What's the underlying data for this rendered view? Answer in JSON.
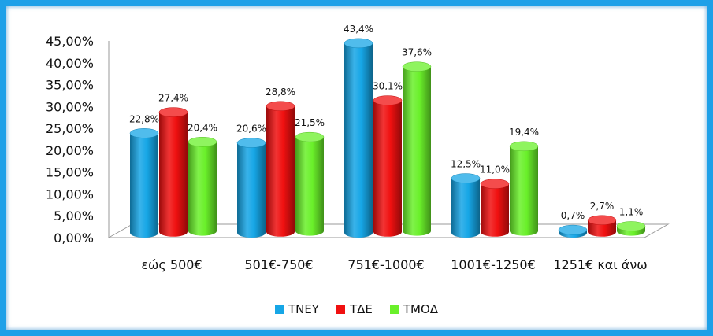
{
  "chart_data": {
    "type": "bar",
    "categories": [
      "εώς 500€",
      "501€-750€",
      "751€-1000€",
      "1001€-1250€",
      "1251€ και άνω"
    ],
    "series": [
      {
        "name": "ΤΝΕΥ",
        "values": [
          22.8,
          20.6,
          43.4,
          12.5,
          0.7
        ],
        "labels": [
          "22,8%",
          "20,6%",
          "43,4%",
          "12,5%",
          "0,7%"
        ],
        "color": "#16a6e6"
      },
      {
        "name": "ΤΔΕ",
        "values": [
          27.4,
          28.8,
          30.1,
          11.0,
          2.7
        ],
        "labels": [
          "27,4%",
          "28,8%",
          "30,1%",
          "11,0%",
          "2,7%"
        ],
        "color": "#f01010"
      },
      {
        "name": "ΤΜΟΔ",
        "values": [
          20.4,
          21.5,
          37.6,
          19.4,
          1.1
        ],
        "labels": [
          "20,4%",
          "21,5%",
          "37,6%",
          "19,4%",
          "1,1%"
        ],
        "color": "#6af02a"
      }
    ],
    "yticks": [
      "0,00%",
      "5,00%",
      "10,00%",
      "15,00%",
      "20,00%",
      "25,00%",
      "30,00%",
      "35,00%",
      "40,00%",
      "45,00%"
    ],
    "ylim": [
      0,
      45
    ],
    "legend_position": "bottom",
    "border_color": "#1ea0e8"
  }
}
